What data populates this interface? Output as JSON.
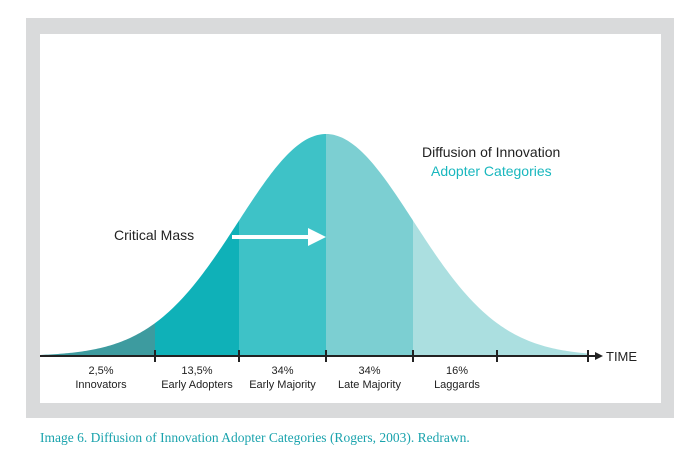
{
  "chart_data": {
    "type": "area",
    "title": "Diffusion of Innovation",
    "subtitle": "Adopter Categories",
    "x_axis_label": "TIME",
    "segments": [
      {
        "name": "Innovators",
        "percent_label": "2,5%",
        "value": 2.5,
        "color": "#3d9b9f"
      },
      {
        "name": "Early Adopters",
        "percent_label": "13,5%",
        "value": 13.5,
        "color": "#0fb1b8"
      },
      {
        "name": "Early Majority",
        "percent_label": "34%",
        "value": 34,
        "color": "#3ec2c7"
      },
      {
        "name": "Late Majority",
        "percent_label": "34%",
        "value": 34,
        "color": "#7ccfd2"
      },
      {
        "name": "Laggards",
        "percent_label": "16%",
        "value": 16,
        "color": "#abdfe0"
      }
    ],
    "annotation": {
      "text": "Critical Mass"
    }
  },
  "caption": "Image 6. Diffusion of Innovation Adopter Categories (Rogers, 2003). Redrawn."
}
